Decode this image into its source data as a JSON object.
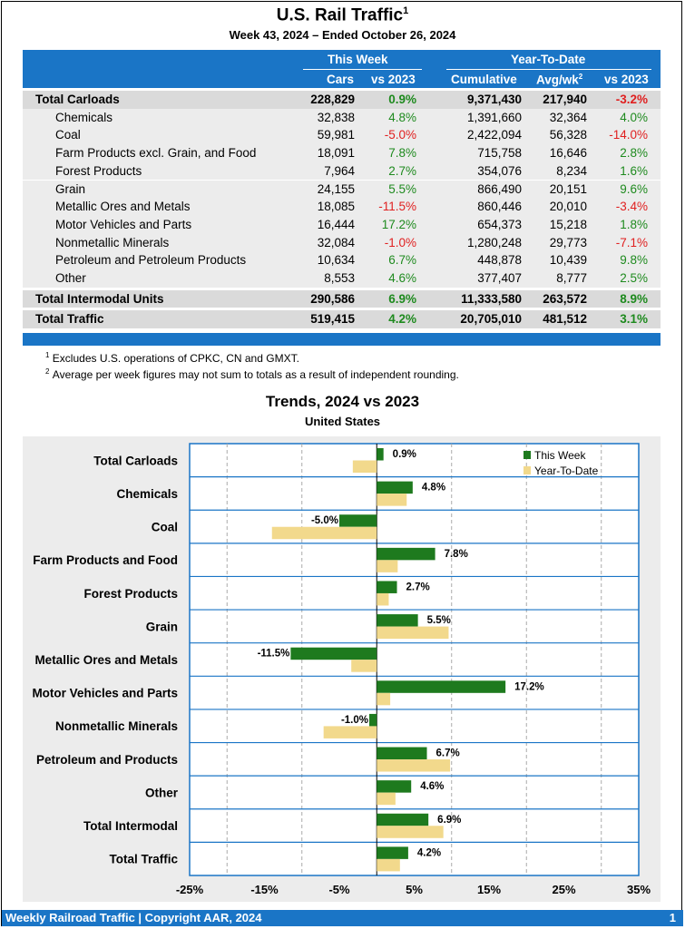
{
  "title": "U.S. Rail Traffic",
  "title_sup": "1",
  "subtitle": "Week 43, 2024 – Ended October 26, 2024",
  "table": {
    "group_this_week": "This Week",
    "group_ytd": "Year-To-Date",
    "col_cars": "Cars",
    "col_vs2023": "vs 2023",
    "col_cumulative": "Cumulative",
    "col_avg": "Avg/wk",
    "col_avg_sup": "2",
    "col_vs2023_ytd": "vs 2023",
    "rows": [
      {
        "label": "Total Carloads",
        "cars": "228,829",
        "vs": "0.9%",
        "cum": "9,371,430",
        "avg": "217,940",
        "vs_ytd": "-3.2%",
        "total": true
      },
      {
        "label": "Chemicals",
        "cars": "32,838",
        "vs": "4.8%",
        "cum": "1,391,660",
        "avg": "32,364",
        "vs_ytd": "4.0%",
        "total": false
      },
      {
        "label": "Coal",
        "cars": "59,981",
        "vs": "-5.0%",
        "cum": "2,422,094",
        "avg": "56,328",
        "vs_ytd": "-14.0%",
        "total": false
      },
      {
        "label": "Farm Products excl. Grain, and Food",
        "cars": "18,091",
        "vs": "7.8%",
        "cum": "715,758",
        "avg": "16,646",
        "vs_ytd": "2.8%",
        "total": false
      },
      {
        "label": "Forest Products",
        "cars": "7,964",
        "vs": "2.7%",
        "cum": "354,076",
        "avg": "8,234",
        "vs_ytd": "1.6%",
        "total": false
      },
      {
        "label": "Grain",
        "cars": "24,155",
        "vs": "5.5%",
        "cum": "866,490",
        "avg": "20,151",
        "vs_ytd": "9.6%",
        "total": false
      },
      {
        "label": "Metallic Ores and Metals",
        "cars": "18,085",
        "vs": "-11.5%",
        "cum": "860,446",
        "avg": "20,010",
        "vs_ytd": "-3.4%",
        "total": false
      },
      {
        "label": "Motor Vehicles and Parts",
        "cars": "16,444",
        "vs": "17.2%",
        "cum": "654,373",
        "avg": "15,218",
        "vs_ytd": "1.8%",
        "total": false
      },
      {
        "label": "Nonmetallic Minerals",
        "cars": "32,084",
        "vs": "-1.0%",
        "cum": "1,280,248",
        "avg": "29,773",
        "vs_ytd": "-7.1%",
        "total": false
      },
      {
        "label": "Petroleum and Petroleum Products",
        "cars": "10,634",
        "vs": "6.7%",
        "cum": "448,878",
        "avg": "10,439",
        "vs_ytd": "9.8%",
        "total": false
      },
      {
        "label": "Other",
        "cars": "8,553",
        "vs": "4.6%",
        "cum": "377,407",
        "avg": "8,777",
        "vs_ytd": "2.5%",
        "total": false
      },
      {
        "label": "Total Intermodal Units",
        "cars": "290,586",
        "vs": "6.9%",
        "cum": "11,333,580",
        "avg": "263,572",
        "vs_ytd": "8.9%",
        "total": true
      },
      {
        "label": "Total Traffic",
        "cars": "519,415",
        "vs": "4.2%",
        "cum": "20,705,010",
        "avg": "481,512",
        "vs_ytd": "3.1%",
        "total": true
      }
    ]
  },
  "footnotes": [
    {
      "num": "1",
      "text": "Excludes U.S. operations of CPKC, CN and GMXT."
    },
    {
      "num": "2",
      "text": "Average per week figures may not sum to totals as a result of independent rounding."
    }
  ],
  "colors": {
    "band": "#1a75c6",
    "positive": "#1e8a1e",
    "negative": "#e02020",
    "this_week": "#1e7a1e",
    "ytd": "#f2d98c"
  },
  "chart_data": {
    "type": "bar",
    "orientation": "horizontal",
    "title": "Trends, 2024 vs 2023",
    "subtitle": "United States",
    "categories": [
      "Total Carloads",
      "Chemicals",
      "Coal",
      "Farm Products and Food",
      "Forest Products",
      "Grain",
      "Metallic Ores and Metals",
      "Motor Vehicles and Parts",
      "Nonmetallic Minerals",
      "Petroleum and Products",
      "Other",
      "Total Intermodal",
      "Total Traffic"
    ],
    "series": [
      {
        "name": "This Week",
        "values": [
          0.9,
          4.8,
          -5.0,
          7.8,
          2.7,
          5.5,
          -11.5,
          17.2,
          -1.0,
          6.7,
          4.6,
          6.9,
          4.2
        ]
      },
      {
        "name": "Year-To-Date",
        "values": [
          -3.2,
          4.0,
          -14.0,
          2.8,
          1.6,
          9.6,
          -3.4,
          1.8,
          -7.1,
          9.8,
          2.5,
          8.9,
          3.1
        ]
      }
    ],
    "data_labels": [
      "0.9%",
      "4.8%",
      "-5.0%",
      "7.8%",
      "2.7%",
      "5.5%",
      "-11.5%",
      "17.2%",
      "-1.0%",
      "6.7%",
      "4.6%",
      "6.9%",
      "4.2%"
    ],
    "xlim": [
      -25,
      35
    ],
    "xticks": [
      "-25%",
      "-15%",
      "-5%",
      "5%",
      "15%",
      "25%",
      "35%"
    ],
    "xtick_values": [
      -25,
      -15,
      -5,
      5,
      15,
      25,
      35
    ],
    "legend": "top-right",
    "grid": true
  },
  "footer": {
    "left": "Weekly Railroad Traffic | Copyright AAR, 2024",
    "page": "1"
  }
}
